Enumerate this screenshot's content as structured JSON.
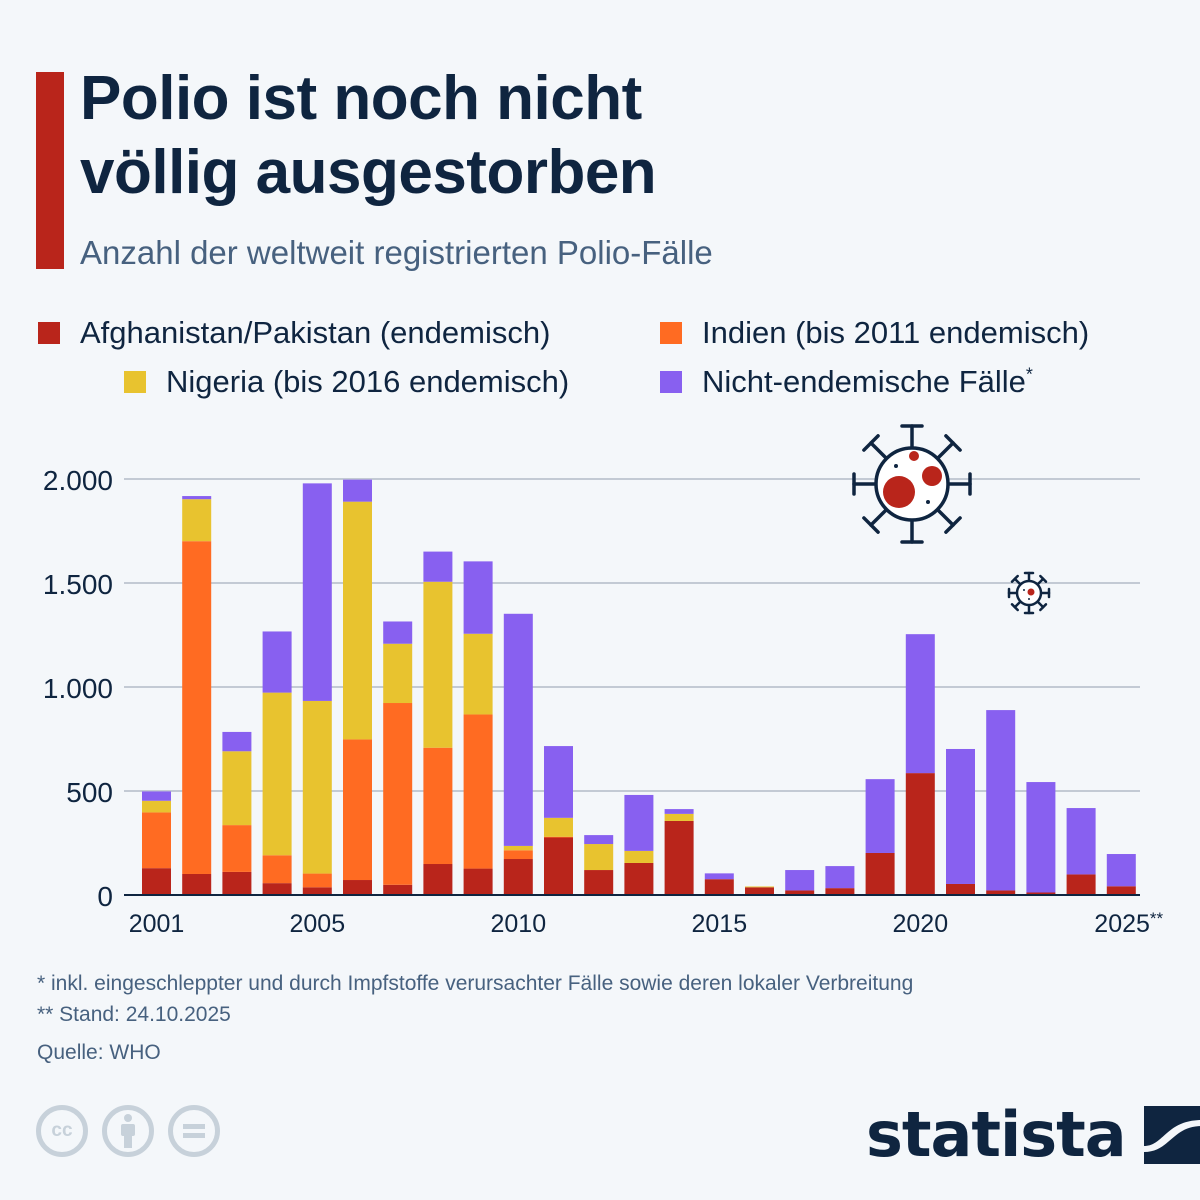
{
  "header": {
    "title_line1": "Polio ist noch nicht",
    "title_line2": "völlig ausgestorben",
    "subtitle": "Anzahl der weltweit registrierten Polio-Fälle",
    "accent_color": "#b9251b"
  },
  "legend": [
    {
      "label": "Afghanistan/Pakistan (endemisch)",
      "color": "#b9251b",
      "sup": ""
    },
    {
      "label": "Indien (bis 2011 endemisch)",
      "color": "#ff6b22",
      "sup": ""
    },
    {
      "label": "Nigeria (bis 2016 endemisch)",
      "color": "#e8c32f",
      "sup": ""
    },
    {
      "label": "Nicht-endemische Fälle",
      "color": "#8860f0",
      "sup": "*"
    }
  ],
  "chart_data": {
    "type": "bar",
    "stacked": true,
    "title": "Polio ist noch nicht völlig ausgestorben",
    "subtitle": "Anzahl der weltweit registrierten Polio-Fälle",
    "xlabel": "",
    "ylabel": "",
    "ylim": [
      0,
      2000
    ],
    "yticks": [
      0,
      500,
      1000,
      1500,
      2000
    ],
    "ytick_labels": [
      "0",
      "500",
      "1.000",
      "1.500",
      "2.000"
    ],
    "xtick_labels": [
      {
        "year": 2001,
        "label": "2001"
      },
      {
        "year": 2005,
        "label": "2005"
      },
      {
        "year": 2010,
        "label": "2010"
      },
      {
        "year": 2015,
        "label": "2015"
      },
      {
        "year": 2020,
        "label": "2020"
      },
      {
        "year": 2025,
        "label": "2025**"
      }
    ],
    "grid": true,
    "legend_position": "top",
    "categories": [
      2001,
      2002,
      2003,
      2004,
      2005,
      2006,
      2007,
      2008,
      2009,
      2010,
      2011,
      2012,
      2013,
      2014,
      2015,
      2016,
      2017,
      2018,
      2019,
      2020,
      2021,
      2022,
      2023,
      2024,
      2025
    ],
    "series": [
      {
        "name": "Afghanistan/Pakistan (endemisch)",
        "color": "#b9251b",
        "values": [
          129,
          101,
          111,
          57,
          37,
          72,
          49,
          149,
          127,
          173,
          279,
          120,
          154,
          356,
          76,
          37,
          22,
          33,
          202,
          586,
          53,
          22,
          12,
          99,
          42
        ]
      },
      {
        "name": "Indien (bis 2011 endemisch)",
        "color": "#ff6b22",
        "values": [
          268,
          1600,
          225,
          134,
          66,
          676,
          874,
          559,
          741,
          42,
          1,
          0,
          0,
          0,
          0,
          0,
          0,
          0,
          0,
          0,
          0,
          0,
          0,
          0,
          0
        ]
      },
      {
        "name": "Nigeria (bis 2016 endemisch)",
        "color": "#e8c32f",
        "values": [
          56,
          202,
          355,
          782,
          830,
          1143,
          285,
          798,
          388,
          21,
          91,
          125,
          58,
          34,
          0,
          4,
          0,
          0,
          0,
          0,
          0,
          0,
          0,
          0,
          0
        ]
      },
      {
        "name": "Nicht-endemische Fälle*",
        "color": "#8860f0",
        "values": [
          45,
          15,
          93,
          294,
          1046,
          106,
          107,
          145,
          348,
          1116,
          345,
          43,
          269,
          23,
          28,
          0,
          98,
          106,
          355,
          668,
          649,
          867,
          531,
          319,
          155
        ]
      }
    ]
  },
  "footnotes": {
    "note1": "*   inkl. eingeschleppter und durch Impfstoffe verursachter Fälle sowie deren lokaler Verbreitung",
    "note2": "** Stand: 24.10.2025",
    "source": "Quelle: WHO"
  },
  "license_icons": [
    {
      "name": "cc-icon",
      "glyph": "cc"
    },
    {
      "name": "attribution-icon",
      "glyph": "person"
    },
    {
      "name": "no-derivatives-icon",
      "glyph": "="
    }
  ],
  "logo": {
    "text": "statista"
  }
}
